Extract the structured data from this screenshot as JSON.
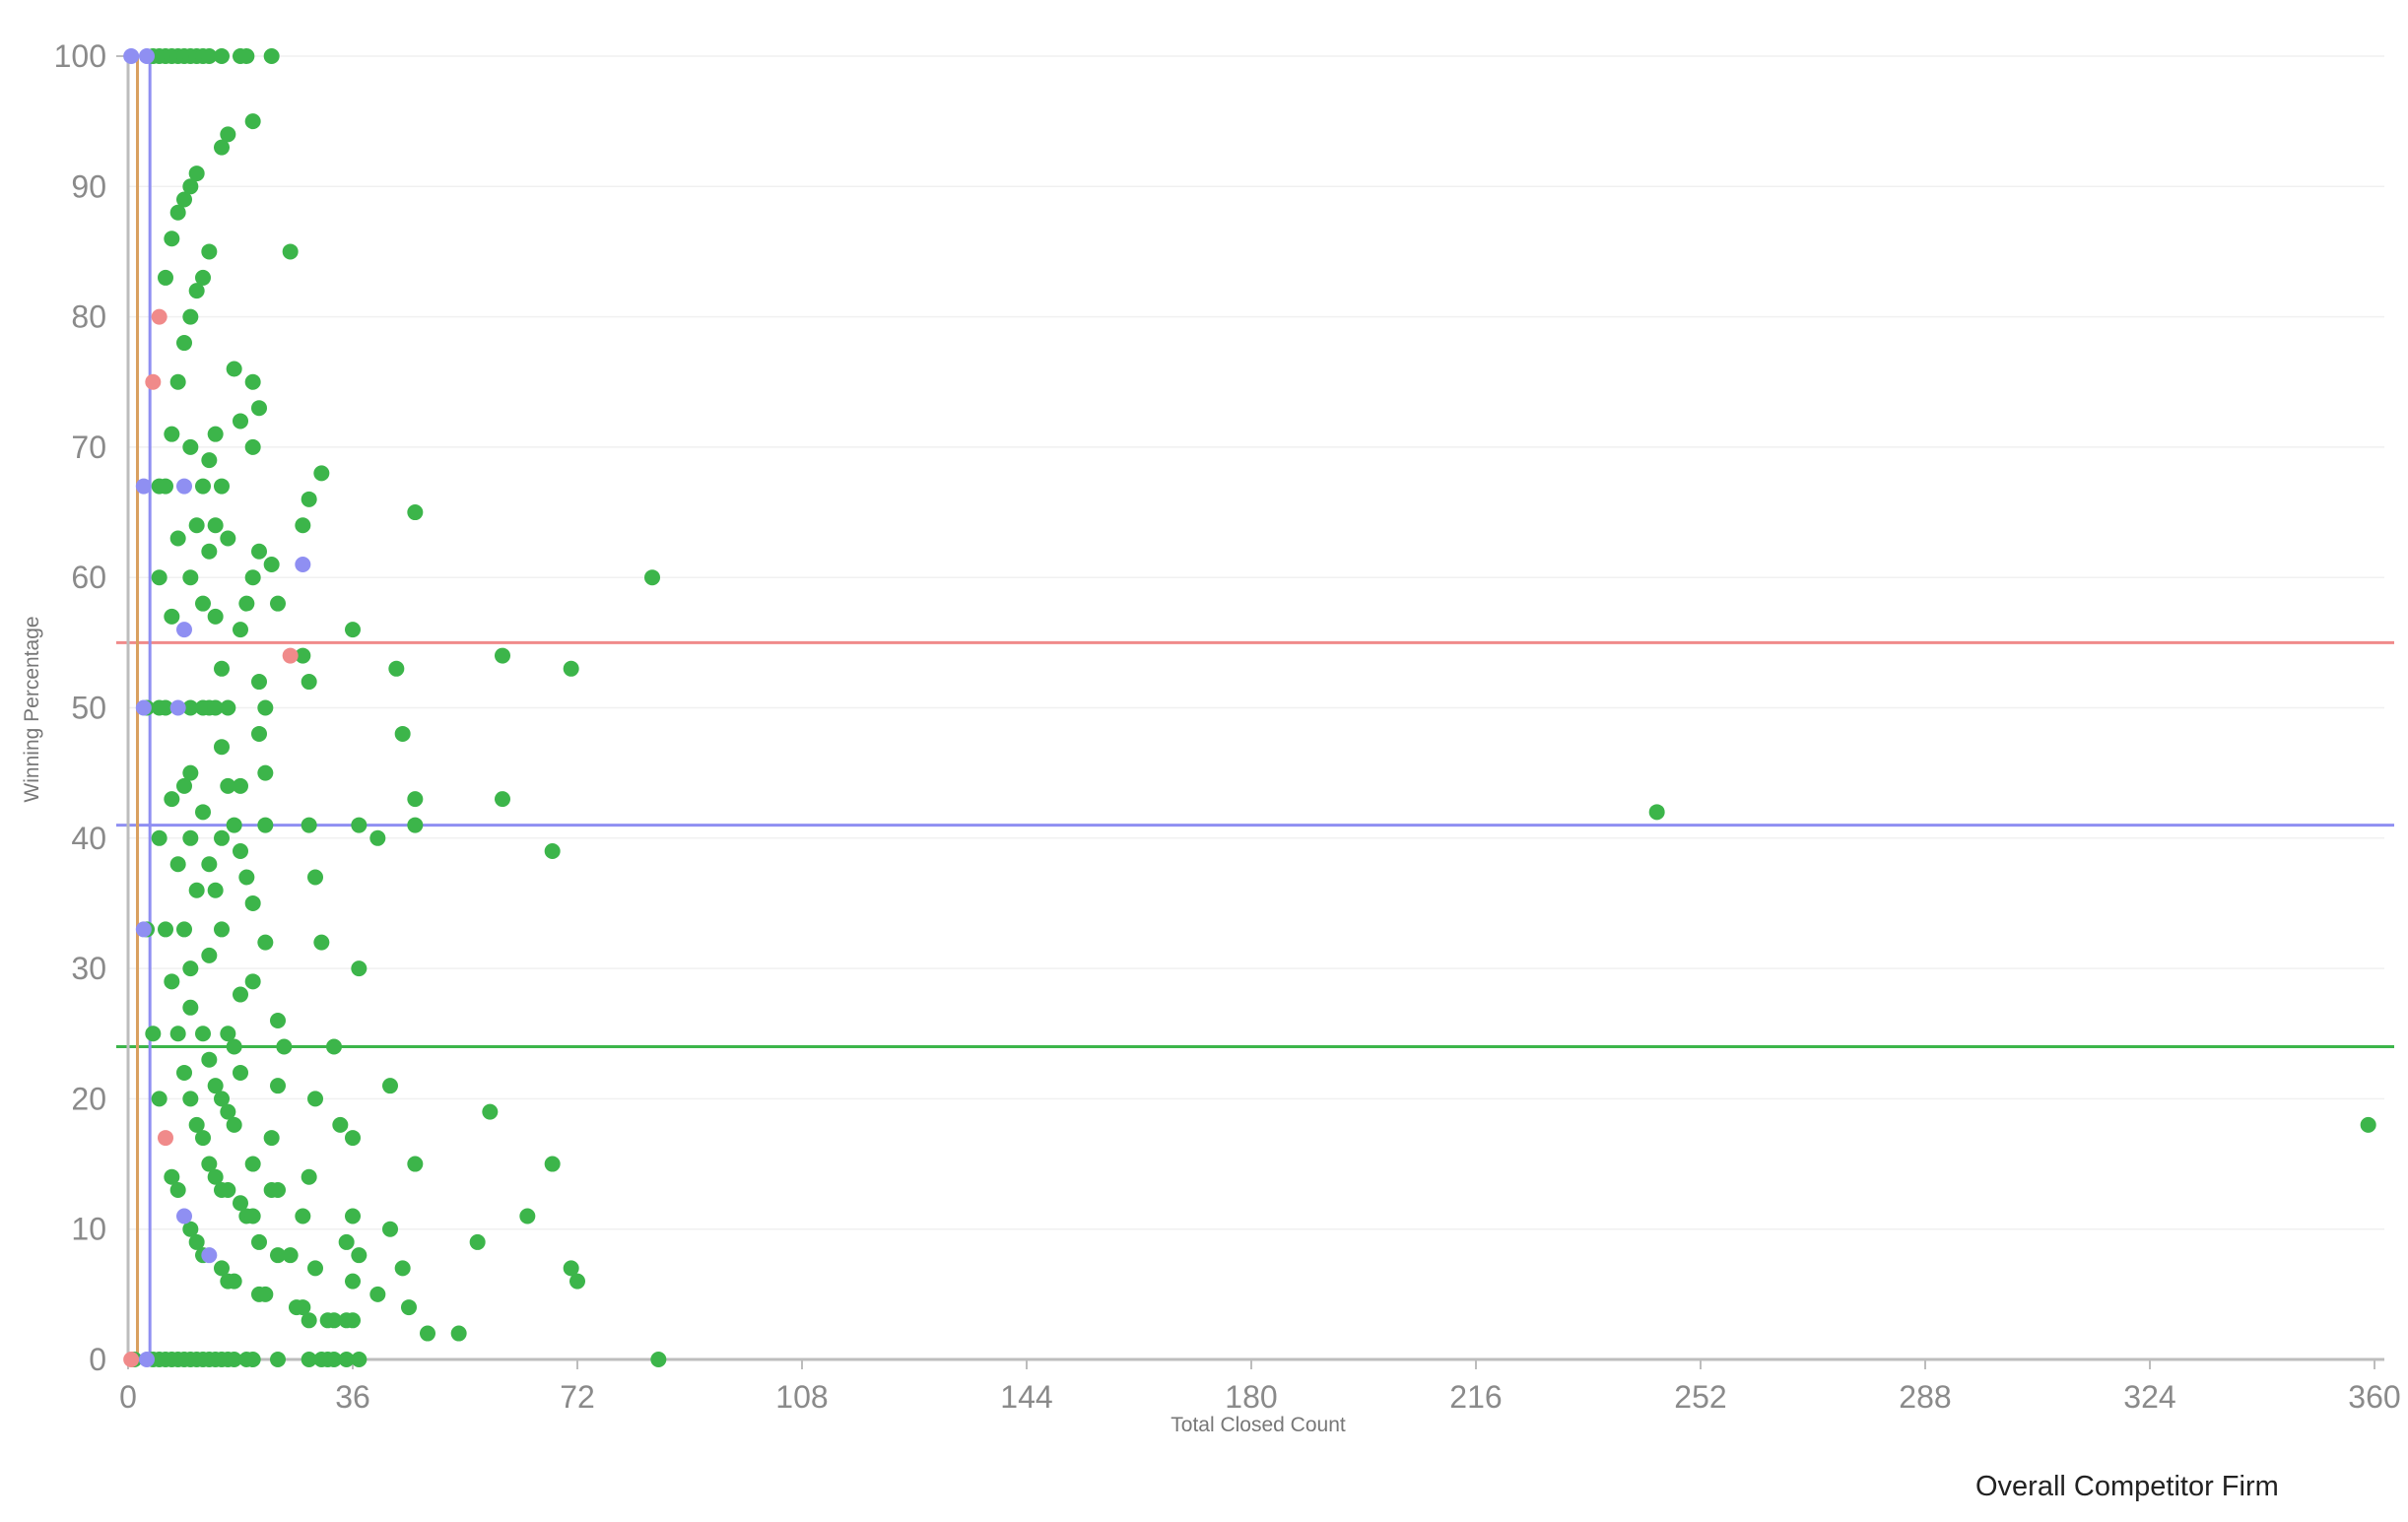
{
  "legend": {
    "title": "Overall Competitor Firm"
  },
  "colors": {
    "green": "#3cb54a",
    "red": "#f08a8a",
    "blue": "#8f8ff2",
    "orange": "#d9a060",
    "gridline": "#f0f0f0",
    "axis": "#bdbdbd"
  },
  "chart_data": {
    "type": "scatter",
    "title": "",
    "xlabel": "Total Closed Count",
    "ylabel": "Winning Percentage",
    "xlim": [
      0,
      360
    ],
    "ylim": [
      0,
      100
    ],
    "x_ticks": [
      0,
      36,
      72,
      108,
      144,
      180,
      216,
      252,
      288,
      324,
      360
    ],
    "y_ticks": [
      0,
      10,
      20,
      30,
      40,
      50,
      60,
      70,
      80,
      90,
      100
    ],
    "grid": true,
    "legend_position": "bottom-right",
    "hlines": [
      {
        "y": 55,
        "color": "#f08a8a"
      },
      {
        "y": 41,
        "color": "#8f8ff2"
      },
      {
        "y": 24,
        "color": "#3cb54a"
      }
    ],
    "vlines": [
      {
        "x": 1.5,
        "color": "#d9a060"
      },
      {
        "x": 3.5,
        "color": "#8f8ff2"
      }
    ],
    "series": [
      {
        "color": "#3cb54a",
        "points": [
          [
            4,
            100
          ],
          [
            5,
            100
          ],
          [
            6,
            100
          ],
          [
            7,
            100
          ],
          [
            8,
            100
          ],
          [
            9,
            100
          ],
          [
            10,
            100
          ],
          [
            11,
            100
          ],
          [
            12,
            100
          ],
          [
            13,
            100
          ],
          [
            15,
            100
          ],
          [
            18,
            100
          ],
          [
            19,
            100
          ],
          [
            23,
            100
          ],
          [
            20,
            95
          ],
          [
            16,
            94
          ],
          [
            15,
            93
          ],
          [
            11,
            91
          ],
          [
            10,
            90
          ],
          [
            9,
            89
          ],
          [
            8,
            88
          ],
          [
            7,
            86
          ],
          [
            13,
            85
          ],
          [
            26,
            85
          ],
          [
            6,
            83
          ],
          [
            12,
            83
          ],
          [
            11,
            82
          ],
          [
            10,
            80
          ],
          [
            9,
            78
          ],
          [
            17,
            76
          ],
          [
            8,
            75
          ],
          [
            20,
            75
          ],
          [
            21,
            73
          ],
          [
            18,
            72
          ],
          [
            7,
            71
          ],
          [
            14,
            71
          ],
          [
            10,
            70
          ],
          [
            20,
            70
          ],
          [
            13,
            69
          ],
          [
            31,
            68
          ],
          [
            5,
            67
          ],
          [
            6,
            67
          ],
          [
            12,
            67
          ],
          [
            15,
            67
          ],
          [
            29,
            66
          ],
          [
            46,
            65
          ],
          [
            11,
            64
          ],
          [
            14,
            64
          ],
          [
            28,
            64
          ],
          [
            8,
            63
          ],
          [
            16,
            63
          ],
          [
            13,
            62
          ],
          [
            21,
            62
          ],
          [
            23,
            61
          ],
          [
            5,
            60
          ],
          [
            10,
            60
          ],
          [
            20,
            60
          ],
          [
            84,
            60
          ],
          [
            12,
            58
          ],
          [
            19,
            58
          ],
          [
            24,
            58
          ],
          [
            7,
            57
          ],
          [
            14,
            57
          ],
          [
            18,
            56
          ],
          [
            36,
            56
          ],
          [
            28,
            54
          ],
          [
            60,
            54
          ],
          [
            15,
            53
          ],
          [
            43,
            53
          ],
          [
            71,
            53
          ],
          [
            21,
            52
          ],
          [
            29,
            52
          ],
          [
            3,
            50
          ],
          [
            5,
            50
          ],
          [
            6,
            50
          ],
          [
            10,
            50
          ],
          [
            12,
            50
          ],
          [
            13,
            50
          ],
          [
            14,
            50
          ],
          [
            16,
            50
          ],
          [
            22,
            50
          ],
          [
            21,
            48
          ],
          [
            44,
            48
          ],
          [
            15,
            47
          ],
          [
            10,
            45
          ],
          [
            22,
            45
          ],
          [
            9,
            44
          ],
          [
            16,
            44
          ],
          [
            18,
            44
          ],
          [
            7,
            43
          ],
          [
            46,
            43
          ],
          [
            60,
            43
          ],
          [
            12,
            42
          ],
          [
            245,
            42
          ],
          [
            17,
            41
          ],
          [
            22,
            41
          ],
          [
            29,
            41
          ],
          [
            37,
            41
          ],
          [
            46,
            41
          ],
          [
            5,
            40
          ],
          [
            10,
            40
          ],
          [
            15,
            40
          ],
          [
            40,
            40
          ],
          [
            18,
            39
          ],
          [
            68,
            39
          ],
          [
            8,
            38
          ],
          [
            13,
            38
          ],
          [
            19,
            37
          ],
          [
            30,
            37
          ],
          [
            11,
            36
          ],
          [
            14,
            36
          ],
          [
            20,
            35
          ],
          [
            3,
            33
          ],
          [
            6,
            33
          ],
          [
            9,
            33
          ],
          [
            15,
            33
          ],
          [
            22,
            32
          ],
          [
            31,
            32
          ],
          [
            13,
            31
          ],
          [
            10,
            30
          ],
          [
            20,
            29
          ],
          [
            37,
            30
          ],
          [
            7,
            29
          ],
          [
            18,
            28
          ],
          [
            10,
            27
          ],
          [
            24,
            26
          ],
          [
            4,
            25
          ],
          [
            8,
            25
          ],
          [
            12,
            25
          ],
          [
            16,
            25
          ],
          [
            17,
            24
          ],
          [
            25,
            24
          ],
          [
            33,
            24
          ],
          [
            13,
            23
          ],
          [
            18,
            22
          ],
          [
            9,
            22
          ],
          [
            14,
            21
          ],
          [
            24,
            21
          ],
          [
            42,
            21
          ],
          [
            5,
            20
          ],
          [
            10,
            20
          ],
          [
            15,
            20
          ],
          [
            30,
            20
          ],
          [
            16,
            19
          ],
          [
            58,
            19
          ],
          [
            11,
            18
          ],
          [
            17,
            18
          ],
          [
            34,
            18
          ],
          [
            359,
            18
          ],
          [
            12,
            17
          ],
          [
            23,
            17
          ],
          [
            36,
            17
          ],
          [
            20,
            15
          ],
          [
            13,
            15
          ],
          [
            46,
            15
          ],
          [
            68,
            15
          ],
          [
            7,
            14
          ],
          [
            14,
            14
          ],
          [
            29,
            14
          ],
          [
            8,
            13
          ],
          [
            16,
            13
          ],
          [
            15,
            13
          ],
          [
            23,
            13
          ],
          [
            24,
            13
          ],
          [
            18,
            12
          ],
          [
            19,
            11
          ],
          [
            20,
            11
          ],
          [
            28,
            11
          ],
          [
            36,
            11
          ],
          [
            64,
            11
          ],
          [
            10,
            10
          ],
          [
            42,
            10
          ],
          [
            11,
            9
          ],
          [
            21,
            9
          ],
          [
            35,
            9
          ],
          [
            56,
            9
          ],
          [
            12,
            8
          ],
          [
            24,
            8
          ],
          [
            26,
            8
          ],
          [
            37,
            8
          ],
          [
            15,
            7
          ],
          [
            30,
            7
          ],
          [
            44,
            7
          ],
          [
            71,
            7
          ],
          [
            16,
            6
          ],
          [
            17,
            6
          ],
          [
            36,
            6
          ],
          [
            72,
            6
          ],
          [
            21,
            5
          ],
          [
            22,
            5
          ],
          [
            40,
            5
          ],
          [
            28,
            4
          ],
          [
            27,
            4
          ],
          [
            45,
            4
          ],
          [
            29,
            3
          ],
          [
            32,
            3
          ],
          [
            33,
            3
          ],
          [
            35,
            3
          ],
          [
            36,
            3
          ],
          [
            48,
            2
          ],
          [
            53,
            2
          ],
          [
            1,
            0
          ],
          [
            4,
            0
          ],
          [
            5,
            0
          ],
          [
            6,
            0
          ],
          [
            7,
            0
          ],
          [
            8,
            0
          ],
          [
            9,
            0
          ],
          [
            10,
            0
          ],
          [
            11,
            0
          ],
          [
            12,
            0
          ],
          [
            13,
            0
          ],
          [
            14,
            0
          ],
          [
            15,
            0
          ],
          [
            16,
            0
          ],
          [
            17,
            0
          ],
          [
            19,
            0
          ],
          [
            20,
            0
          ],
          [
            24,
            0
          ],
          [
            29,
            0
          ],
          [
            31,
            0
          ],
          [
            32,
            0
          ],
          [
            33,
            0
          ],
          [
            35,
            0
          ],
          [
            37,
            0
          ],
          [
            85,
            0
          ]
        ]
      },
      {
        "color": "#f08a8a",
        "points": [
          [
            5,
            80
          ],
          [
            4,
            75
          ],
          [
            26,
            54
          ],
          [
            6,
            17
          ],
          [
            0.5,
            0
          ]
        ]
      },
      {
        "color": "#8f8ff2",
        "points": [
          [
            0.5,
            100
          ],
          [
            3,
            100
          ],
          [
            2.5,
            67
          ],
          [
            9,
            67
          ],
          [
            28,
            61
          ],
          [
            9,
            56
          ],
          [
            2.5,
            50
          ],
          [
            8,
            50
          ],
          [
            2.5,
            33
          ],
          [
            9,
            11
          ],
          [
            13,
            8
          ],
          [
            3,
            0
          ]
        ]
      }
    ]
  }
}
